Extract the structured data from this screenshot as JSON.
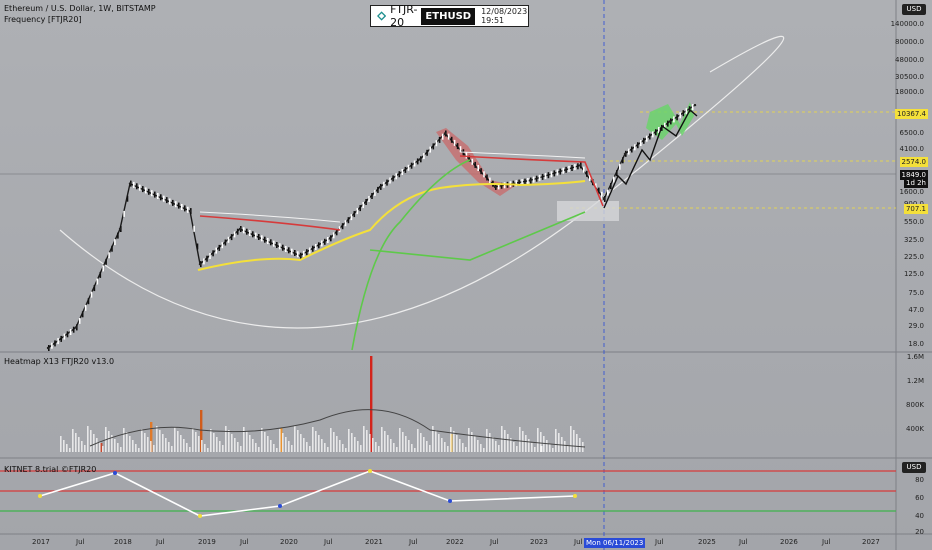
{
  "header": {
    "symbol_line": "Ethereum / U.S. Dollar, 1W, BITSTAMP",
    "indicator_line": "Frequency [FTJR20]",
    "ticker_name": "FTJR-20",
    "ticker_pair": "ETHUSD",
    "ticker_datetime": "12/08/2023 19:51"
  },
  "currency": "USD",
  "panes": {
    "heatmap_label": "Heatmap X13 FTJR20  v13.0",
    "kitnet_label": "KITNET  8.trial ©FTJR20"
  },
  "price_axis": {
    "ticks": [
      "140000.0",
      "80000.0",
      "48000.0",
      "30500.0",
      "18000.0",
      "6500.0",
      "4100.0",
      "1600.0",
      "900.0",
      "550.0",
      "325.0",
      "225.0",
      "125.0",
      "75.0",
      "47.0",
      "29.0",
      "18.0"
    ],
    "tags": [
      {
        "label": "10367.4",
        "color": "#f4e03a",
        "text_color": "#222"
      },
      {
        "label": "2574.0",
        "color": "#f4e03a",
        "text_color": "#222"
      },
      {
        "label": "1849.0",
        "color": "#111",
        "text_color": "#fff"
      },
      {
        "label": "1d 2h",
        "color": "#111",
        "text_color": "#fff"
      },
      {
        "label": "707.1",
        "color": "#f4e03a",
        "text_color": "#222"
      }
    ]
  },
  "heatmap_axis": {
    "ticks": [
      "1.6M",
      "1.2M",
      "800K",
      "400K"
    ]
  },
  "kitnet_axis": {
    "ticks": [
      "80",
      "60",
      "40",
      "20"
    ]
  },
  "time_axis": {
    "ticks": [
      "2017",
      "Jul",
      "2018",
      "Jul",
      "2019",
      "Jul",
      "2020",
      "Jul",
      "2021",
      "Jul",
      "2022",
      "Jul",
      "2023",
      "Jul",
      "Jul",
      "2025",
      "Jul",
      "2026",
      "Jul",
      "2027"
    ],
    "cursor_label": "Mon 06/11/2023"
  },
  "colors": {
    "up": "#ffffff",
    "down": "#111111",
    "accent": "#2a4bd7",
    "yellow": "#f4e03a",
    "red": "#d63b3b",
    "green": "#5ec94a"
  },
  "chart_data": [
    {
      "type": "line",
      "title": "Ethereum / U.S. Dollar, 1W, BITSTAMP",
      "y_scale": "log",
      "x": [
        "2016-08",
        "2017-01",
        "2017-06",
        "2018-01",
        "2018-06",
        "2019-01",
        "2019-06",
        "2020-01",
        "2020-06",
        "2021-01",
        "2021-06",
        "2021-11",
        "2022-06",
        "2022-12",
        "2023-06",
        "2023-12",
        "2024-06",
        "2024-11",
        "2025-01"
      ],
      "series": [
        {
          "name": "ETHUSD",
          "values": [
            10,
            18,
            300,
            1100,
            500,
            110,
            300,
            140,
            230,
            1000,
            2200,
            4600,
            1000,
            1200,
            1850,
            707,
            2574,
            6500,
            10367
          ]
        }
      ],
      "annotations": [
        "10367.4",
        "2574.0",
        "707.1"
      ]
    },
    {
      "type": "bar",
      "title": "Heatmap X13 FTJR20  v13.0",
      "ylim": [
        0,
        1600000
      ],
      "categories": [
        "2017",
        "2018",
        "2019",
        "2020",
        "2021",
        "2022",
        "2023"
      ],
      "values": [
        150000,
        500000,
        700000,
        400000,
        1600000,
        300000,
        100000
      ]
    },
    {
      "type": "line",
      "title": "KITNET  8.trial ©FTJR20",
      "ylim": [
        20,
        85
      ],
      "categories": [
        "2017",
        "2018",
        "2019",
        "2020",
        "2021",
        "2022",
        "2023"
      ],
      "series": [
        {
          "name": "KITNET",
          "values": [
            55,
            78,
            35,
            45,
            80,
            50,
            55
          ]
        }
      ]
    }
  ]
}
